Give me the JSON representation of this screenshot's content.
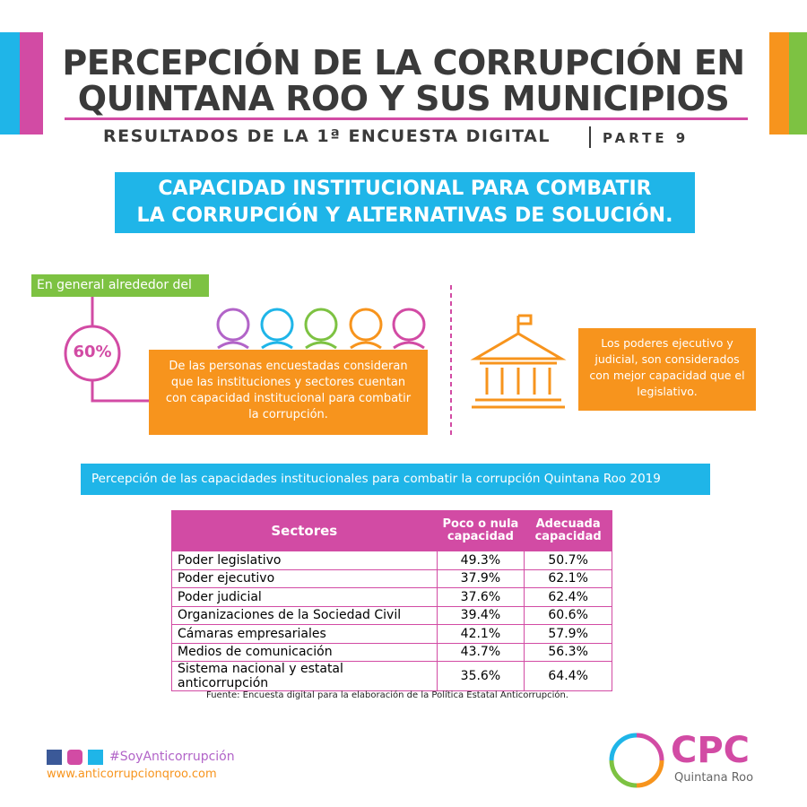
{
  "header": {
    "title_lines": [
      "PERCEPCIÓN DE LA CORRUPCIÓN EN",
      "QUINTANA ROO Y SUS MUNICIPIOS"
    ],
    "subtitle": "RESULTADOS DE LA 1ª ENCUESTA DIGITAL",
    "part": "PARTE 9"
  },
  "banner": {
    "lines": [
      "CAPACIDAD INSTITUCIONAL PARA COMBATIR",
      "LA CORRUPCIÓN Y ALTERNATIVAS DE SOLUCIÓN."
    ]
  },
  "left_panel": {
    "label": "En general alrededor del",
    "percent": "60%",
    "text": "De las personas encuestadas consideran que las instituciones y sectores cuentan con capacidad institucional para combatir la corrupción."
  },
  "right_panel": {
    "text": "Los poderes ejecutivo y judicial, son considerados con mejor capacidad que el legislativo."
  },
  "table": {
    "title": "Percepción de las capacidades institucionales para combatir la corrupción Quintana Roo 2019",
    "headers": [
      "Sectores",
      "Poco o nula capacidad",
      "Adecuada capacidad"
    ],
    "rows": [
      [
        "Poder legislativo",
        "49.3%",
        "50.7%"
      ],
      [
        "Poder ejecutivo",
        "37.9%",
        "62.1%"
      ],
      [
        "Poder judicial",
        "37.6%",
        "62.4%"
      ],
      [
        "Organizaciones de la Sociedad Civil",
        "39.4%",
        "60.6%"
      ],
      [
        "Cámaras empresariales",
        "42.1%",
        "57.9%"
      ],
      [
        "Medios de comunicación",
        "43.7%",
        "56.3%"
      ],
      [
        "Sistema nacional y estatal anticorrupción",
        "35.6%",
        "64.4%"
      ]
    ],
    "source": "Fuente: Encuesta digital para la elaboración de la Política Estatal Anticorrupción."
  },
  "footer": {
    "hashtag": "#SoyAnticorrupción",
    "url": "www.anticorrupcionqroo.com",
    "logo": "CPC",
    "logo_sub": "Quintana Roo"
  }
}
